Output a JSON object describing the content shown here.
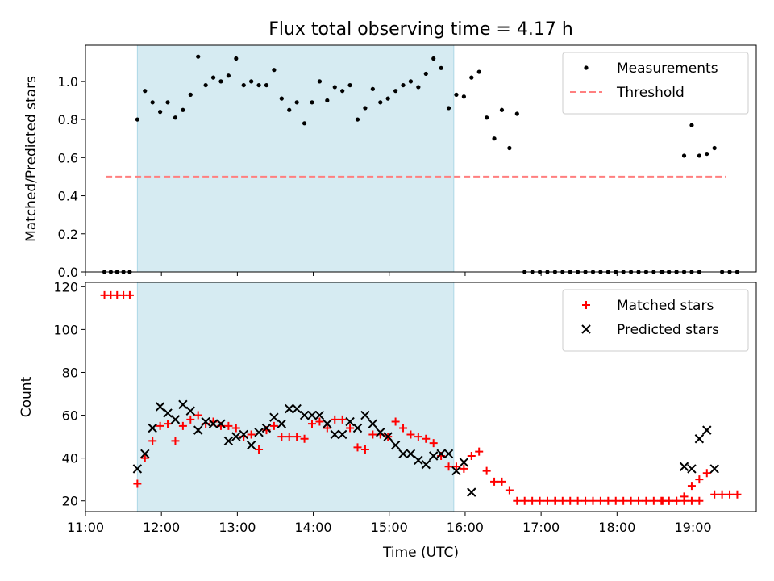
{
  "title": "Flux total observing time = 4.17 h",
  "colors": {
    "shade": "#add8e6",
    "measurement": "#000000",
    "threshold": "#ff7f7f",
    "matched": "#ff0000",
    "predicted": "#000000"
  },
  "chart_data": [
    {
      "type": "scatter",
      "ylabel": "Matched/Predicted stars",
      "xlim": [
        "11:00",
        "19:50"
      ],
      "ylim": [
        0,
        1.19
      ],
      "x_ticks": [
        "11:00",
        "12:00",
        "13:00",
        "14:00",
        "15:00",
        "16:00",
        "17:00",
        "18:00",
        "19:00"
      ],
      "y_ticks": [
        "0.0",
        "0.2",
        "0.4",
        "0.6",
        "0.8",
        "1.0"
      ],
      "legend_position": "top-right",
      "shaded_span": [
        "11:41",
        "15:51"
      ],
      "threshold": {
        "name": "Threshold",
        "value": 0.5,
        "x_range": [
          "11:16",
          "19:26"
        ],
        "style": "dashed"
      },
      "series": [
        {
          "name": "Measurements",
          "points": [
            [
              "11:15",
              0.0
            ],
            [
              "11:20",
              0.0
            ],
            [
              "11:25",
              0.0
            ],
            [
              "11:30",
              0.0
            ],
            [
              "11:35",
              0.0
            ],
            [
              "11:41",
              0.8
            ],
            [
              "11:47",
              0.95
            ],
            [
              "11:53",
              0.89
            ],
            [
              "11:59",
              0.84
            ],
            [
              "12:05",
              0.89
            ],
            [
              "12:11",
              0.81
            ],
            [
              "12:17",
              0.85
            ],
            [
              "12:23",
              0.93
            ],
            [
              "12:29",
              1.13
            ],
            [
              "12:35",
              0.98
            ],
            [
              "12:41",
              1.02
            ],
            [
              "12:47",
              1.0
            ],
            [
              "12:53",
              1.03
            ],
            [
              "12:59",
              1.12
            ],
            [
              "13:05",
              0.98
            ],
            [
              "13:11",
              1.0
            ],
            [
              "13:17",
              0.98
            ],
            [
              "13:23",
              0.98
            ],
            [
              "13:29",
              1.06
            ],
            [
              "13:35",
              0.91
            ],
            [
              "13:41",
              0.85
            ],
            [
              "13:47",
              0.89
            ],
            [
              "13:53",
              0.78
            ],
            [
              "13:59",
              0.89
            ],
            [
              "14:05",
              1.0
            ],
            [
              "14:11",
              0.9
            ],
            [
              "14:17",
              0.97
            ],
            [
              "14:23",
              0.95
            ],
            [
              "14:29",
              0.98
            ],
            [
              "14:35",
              0.8
            ],
            [
              "14:41",
              0.86
            ],
            [
              "14:47",
              0.96
            ],
            [
              "14:53",
              0.89
            ],
            [
              "14:59",
              0.91
            ],
            [
              "15:05",
              0.95
            ],
            [
              "15:11",
              0.98
            ],
            [
              "15:17",
              1.0
            ],
            [
              "15:23",
              0.97
            ],
            [
              "15:29",
              1.04
            ],
            [
              "15:35",
              1.12
            ],
            [
              "15:41",
              1.07
            ],
            [
              "15:47",
              0.86
            ],
            [
              "15:53",
              0.93
            ],
            [
              "15:59",
              0.92
            ],
            [
              "16:05",
              1.02
            ],
            [
              "16:11",
              1.05
            ],
            [
              "16:17",
              0.81
            ],
            [
              "16:23",
              0.7
            ],
            [
              "16:29",
              0.85
            ],
            [
              "16:35",
              0.65
            ],
            [
              "16:41",
              0.83
            ],
            [
              "16:47",
              0.0
            ],
            [
              "16:53",
              0.0
            ],
            [
              "16:59",
              0.0
            ],
            [
              "17:05",
              0.0
            ],
            [
              "17:11",
              0.0
            ],
            [
              "17:17",
              0.0
            ],
            [
              "17:23",
              0.0
            ],
            [
              "17:29",
              0.0
            ],
            [
              "17:35",
              0.0
            ],
            [
              "17:41",
              0.0
            ],
            [
              "17:47",
              0.0
            ],
            [
              "17:53",
              0.0
            ],
            [
              "17:59",
              0.0
            ],
            [
              "18:05",
              0.0
            ],
            [
              "18:11",
              0.0
            ],
            [
              "18:17",
              0.0
            ],
            [
              "18:23",
              0.0
            ],
            [
              "18:29",
              0.0
            ],
            [
              "18:35",
              0.0
            ],
            [
              "18:41",
              0.0
            ],
            [
              "18:47",
              0.0
            ],
            [
              "18:53",
              0.0
            ],
            [
              "18:59",
              0.0
            ],
            [
              "19:05",
              0.0
            ],
            [
              "18:36",
              0.0
            ],
            [
              "18:41",
              0.0
            ],
            [
              "18:47",
              0.0
            ],
            [
              "18:53",
              0.61
            ],
            [
              "18:59",
              0.77
            ],
            [
              "19:05",
              0.61
            ],
            [
              "19:11",
              0.62
            ],
            [
              "19:17",
              0.65
            ],
            [
              "19:23",
              0.0
            ],
            [
              "19:29",
              0.0
            ],
            [
              "19:35",
              0.0
            ]
          ]
        }
      ]
    },
    {
      "type": "scatter",
      "xlabel": "Time (UTC)",
      "ylabel": "Count",
      "xlim": [
        "11:00",
        "19:50"
      ],
      "ylim": [
        15,
        122
      ],
      "x_ticks": [
        "11:00",
        "12:00",
        "13:00",
        "14:00",
        "15:00",
        "16:00",
        "17:00",
        "18:00",
        "19:00"
      ],
      "y_ticks": [
        "20",
        "40",
        "60",
        "80",
        "100",
        "120"
      ],
      "legend_position": "top-right",
      "shaded_span": [
        "11:41",
        "15:51"
      ],
      "series": [
        {
          "name": "Matched stars",
          "marker": "plus",
          "points": [
            [
              "11:15",
              116
            ],
            [
              "11:20",
              116
            ],
            [
              "11:25",
              116
            ],
            [
              "11:30",
              116
            ],
            [
              "11:35",
              116
            ],
            [
              "11:41",
              28
            ],
            [
              "11:47",
              40
            ],
            [
              "11:53",
              48
            ],
            [
              "11:59",
              55
            ],
            [
              "12:05",
              56
            ],
            [
              "12:11",
              48
            ],
            [
              "12:17",
              55
            ],
            [
              "12:23",
              58
            ],
            [
              "12:29",
              60
            ],
            [
              "12:35",
              56
            ],
            [
              "12:41",
              57
            ],
            [
              "12:47",
              55
            ],
            [
              "12:53",
              55
            ],
            [
              "12:59",
              54
            ],
            [
              "13:05",
              50
            ],
            [
              "13:11",
              51
            ],
            [
              "13:17",
              44
            ],
            [
              "13:23",
              53
            ],
            [
              "13:29",
              55
            ],
            [
              "13:35",
              50
            ],
            [
              "13:41",
              50
            ],
            [
              "13:47",
              50
            ],
            [
              "13:53",
              49
            ],
            [
              "13:59",
              56
            ],
            [
              "14:05",
              57
            ],
            [
              "14:11",
              54
            ],
            [
              "14:17",
              58
            ],
            [
              "14:23",
              58
            ],
            [
              "14:29",
              54
            ],
            [
              "14:35",
              45
            ],
            [
              "14:41",
              44
            ],
            [
              "14:47",
              51
            ],
            [
              "14:53",
              51
            ],
            [
              "14:59",
              50
            ],
            [
              "15:05",
              57
            ],
            [
              "15:11",
              54
            ],
            [
              "15:17",
              51
            ],
            [
              "15:23",
              50
            ],
            [
              "15:29",
              49
            ],
            [
              "15:35",
              47
            ],
            [
              "15:41",
              41
            ],
            [
              "15:47",
              36
            ],
            [
              "15:53",
              36
            ],
            [
              "15:59",
              35
            ],
            [
              "16:05",
              41
            ],
            [
              "16:11",
              43
            ],
            [
              "16:17",
              34
            ],
            [
              "16:23",
              29
            ],
            [
              "16:29",
              29
            ],
            [
              "16:35",
              25
            ],
            [
              "16:41",
              20
            ],
            [
              "16:47",
              20
            ],
            [
              "16:53",
              20
            ],
            [
              "16:59",
              20
            ],
            [
              "17:05",
              20
            ],
            [
              "17:11",
              20
            ],
            [
              "17:17",
              20
            ],
            [
              "17:23",
              20
            ],
            [
              "17:29",
              20
            ],
            [
              "17:35",
              20
            ],
            [
              "17:41",
              20
            ],
            [
              "17:47",
              20
            ],
            [
              "17:53",
              20
            ],
            [
              "17:59",
              20
            ],
            [
              "18:05",
              20
            ],
            [
              "18:11",
              20
            ],
            [
              "18:17",
              20
            ],
            [
              "18:23",
              20
            ],
            [
              "18:29",
              20
            ],
            [
              "18:35",
              20
            ],
            [
              "18:41",
              20
            ],
            [
              "18:47",
              20
            ],
            [
              "18:53",
              20
            ],
            [
              "18:59",
              20
            ],
            [
              "19:05",
              20
            ],
            [
              "18:36",
              20
            ],
            [
              "18:41",
              20
            ],
            [
              "18:47",
              20
            ],
            [
              "18:53",
              22
            ],
            [
              "18:59",
              27
            ],
            [
              "19:05",
              30
            ],
            [
              "19:11",
              33
            ],
            [
              "19:17",
              23
            ],
            [
              "19:23",
              23
            ],
            [
              "19:29",
              23
            ],
            [
              "19:35",
              23
            ]
          ]
        },
        {
          "name": "Predicted stars",
          "marker": "x",
          "points": [
            [
              "11:41",
              35
            ],
            [
              "11:47",
              42
            ],
            [
              "11:53",
              54
            ],
            [
              "11:59",
              64
            ],
            [
              "12:05",
              61
            ],
            [
              "12:11",
              58
            ],
            [
              "12:17",
              65
            ],
            [
              "12:23",
              62
            ],
            [
              "12:29",
              53
            ],
            [
              "12:35",
              57
            ],
            [
              "12:41",
              56
            ],
            [
              "12:47",
              56
            ],
            [
              "12:53",
              48
            ],
            [
              "12:59",
              50
            ],
            [
              "13:05",
              51
            ],
            [
              "13:11",
              46
            ],
            [
              "13:17",
              52
            ],
            [
              "13:23",
              54
            ],
            [
              "13:29",
              59
            ],
            [
              "13:35",
              56
            ],
            [
              "13:41",
              63
            ],
            [
              "13:47",
              63
            ],
            [
              "13:53",
              60
            ],
            [
              "13:59",
              60
            ],
            [
              "14:05",
              60
            ],
            [
              "14:11",
              56
            ],
            [
              "14:17",
              51
            ],
            [
              "14:23",
              51
            ],
            [
              "14:29",
              57
            ],
            [
              "14:35",
              54
            ],
            [
              "14:41",
              60
            ],
            [
              "14:47",
              56
            ],
            [
              "14:53",
              52
            ],
            [
              "14:59",
              50
            ],
            [
              "15:05",
              46
            ],
            [
              "15:11",
              42
            ],
            [
              "15:17",
              42
            ],
            [
              "15:23",
              39
            ],
            [
              "15:29",
              37
            ],
            [
              "15:35",
              41
            ],
            [
              "15:41",
              42
            ],
            [
              "15:47",
              42
            ],
            [
              "15:53",
              34
            ],
            [
              "15:59",
              38
            ],
            [
              "16:05",
              24
            ],
            [
              "18:53",
              36
            ],
            [
              "18:59",
              35
            ],
            [
              "19:05",
              49
            ],
            [
              "19:11",
              53
            ],
            [
              "19:17",
              35
            ]
          ]
        }
      ]
    }
  ]
}
